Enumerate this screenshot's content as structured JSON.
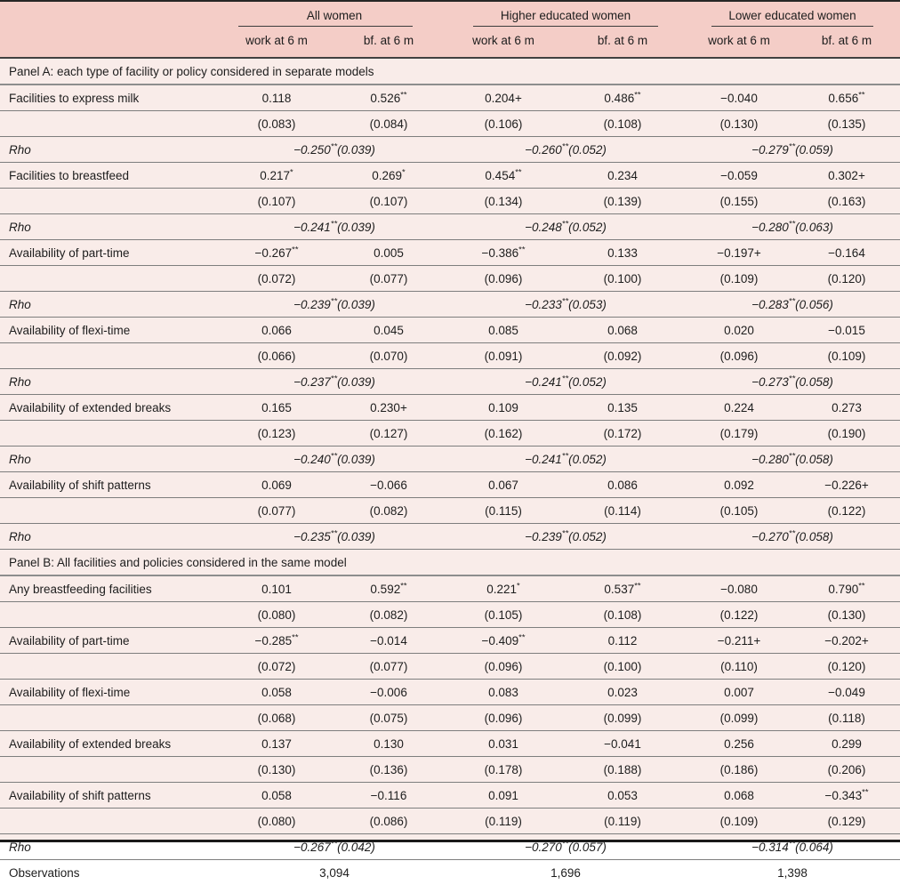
{
  "colors": {
    "header_band": "#f4cdc7",
    "body_background": "#f9ece9",
    "rule_dark": "#3c3c3c",
    "rule_light": "#7e7e7e"
  },
  "header": {
    "groups": [
      {
        "label": "All women"
      },
      {
        "label": "Higher educated women"
      },
      {
        "label": "Lower educated women"
      }
    ],
    "subheaders": [
      "work at 6 m",
      "bf. at 6 m",
      "work at 6 m",
      "bf. at 6 m",
      "work at 6 m",
      "bf. at 6 m"
    ]
  },
  "panel_a": {
    "title": "Panel A: each type of facility or policy considered in separate models",
    "rho_label": "Rho",
    "blocks": [
      {
        "label": "Facilities to express milk",
        "coefs": [
          "0.118",
          "0.526**",
          "0.204+",
          "0.486**",
          "−0.040",
          "0.656**"
        ],
        "ses": [
          "(0.083)",
          "(0.084)",
          "(0.106)",
          "(0.108)",
          "(0.130)",
          "(0.135)"
        ],
        "rho": [
          "−0.250**(0.039)",
          "−0.260**(0.052)",
          "−0.279**(0.059)"
        ]
      },
      {
        "label": "Facilities to breastfeed",
        "coefs": [
          "0.217*",
          "0.269*",
          "0.454**",
          "0.234",
          "−0.059",
          "0.302+"
        ],
        "ses": [
          "(0.107)",
          "(0.107)",
          "(0.134)",
          "(0.139)",
          "(0.155)",
          "(0.163)"
        ],
        "rho": [
          "−0.241**(0.039)",
          "−0.248**(0.052)",
          "−0.280**(0.063)"
        ]
      },
      {
        "label": "Availability of part-time",
        "coefs": [
          "−0.267**",
          "0.005",
          "−0.386**",
          "0.133",
          "−0.197+",
          "−0.164"
        ],
        "ses": [
          "(0.072)",
          "(0.077)",
          "(0.096)",
          "(0.100)",
          "(0.109)",
          "(0.120)"
        ],
        "rho": [
          "−0.239**(0.039)",
          "−0.233**(0.053)",
          "−0.283**(0.056)"
        ]
      },
      {
        "label": "Availability of flexi-time",
        "coefs": [
          "0.066",
          "0.045",
          "0.085",
          "0.068",
          "0.020",
          "−0.015"
        ],
        "ses": [
          "(0.066)",
          "(0.070)",
          "(0.091)",
          "(0.092)",
          "(0.096)",
          "(0.109)"
        ],
        "rho": [
          "−0.237**(0.039)",
          "−0.241**(0.052)",
          "−0.273**(0.058)"
        ]
      },
      {
        "label": "Availability of extended breaks",
        "coefs": [
          "0.165",
          "0.230+",
          "0.109",
          "0.135",
          "0.224",
          "0.273"
        ],
        "ses": [
          "(0.123)",
          "(0.127)",
          "(0.162)",
          "(0.172)",
          "(0.179)",
          "(0.190)"
        ],
        "rho": [
          "−0.240**(0.039)",
          "−0.241**(0.052)",
          "−0.280**(0.058)"
        ]
      },
      {
        "label": "Availability of shift patterns",
        "coefs": [
          "0.069",
          "−0.066",
          "0.067",
          "0.086",
          "0.092",
          "−0.226+"
        ],
        "ses": [
          "(0.077)",
          "(0.082)",
          "(0.115)",
          "(0.114)",
          "(0.105)",
          "(0.122)"
        ],
        "rho": [
          "−0.235**(0.039)",
          "−0.239**(0.052)",
          "−0.270**(0.058)"
        ]
      }
    ]
  },
  "panel_b": {
    "title": "Panel B: All facilities and policies considered in the same model",
    "rho_label": "Rho",
    "blocks": [
      {
        "label": "Any breastfeeding facilities",
        "coefs": [
          "0.101",
          "0.592**",
          "0.221*",
          "0.537**",
          "−0.080",
          "0.790**"
        ],
        "ses": [
          "(0.080)",
          "(0.082)",
          "(0.105)",
          "(0.108)",
          "(0.122)",
          "(0.130)"
        ]
      },
      {
        "label": "Availability of part-time",
        "coefs": [
          "−0.285**",
          "−0.014",
          "−0.409**",
          "0.112",
          "−0.211+",
          "−0.202+"
        ],
        "ses": [
          "(0.072)",
          "(0.077)",
          "(0.096)",
          "(0.100)",
          "(0.110)",
          "(0.120)"
        ]
      },
      {
        "label": "Availability of flexi-time",
        "coefs": [
          "0.058",
          "−0.006",
          "0.083",
          "0.023",
          "0.007",
          "−0.049"
        ],
        "ses": [
          "(0.068)",
          "(0.075)",
          "(0.096)",
          "(0.099)",
          "(0.099)",
          "(0.118)"
        ]
      },
      {
        "label": "Availability of extended breaks",
        "coefs": [
          "0.137",
          "0.130",
          "0.031",
          "−0.041",
          "0.256",
          "0.299"
        ],
        "ses": [
          "(0.130)",
          "(0.136)",
          "(0.178)",
          "(0.188)",
          "(0.186)",
          "(0.206)"
        ]
      },
      {
        "label": "Availability of shift patterns",
        "coefs": [
          "0.058",
          "−0.116",
          "0.091",
          "0.053",
          "0.068",
          "−0.343**"
        ],
        "ses": [
          "(0.080)",
          "(0.086)",
          "(0.119)",
          "(0.119)",
          "(0.109)",
          "(0.129)"
        ]
      }
    ],
    "rho": [
      "−0.267**(0.042)",
      "−0.270**(0.057)",
      "−0.314**(0.064)"
    ]
  },
  "observations": {
    "label": "Observations",
    "values": [
      "3,094",
      "1,696",
      "1,398"
    ]
  }
}
